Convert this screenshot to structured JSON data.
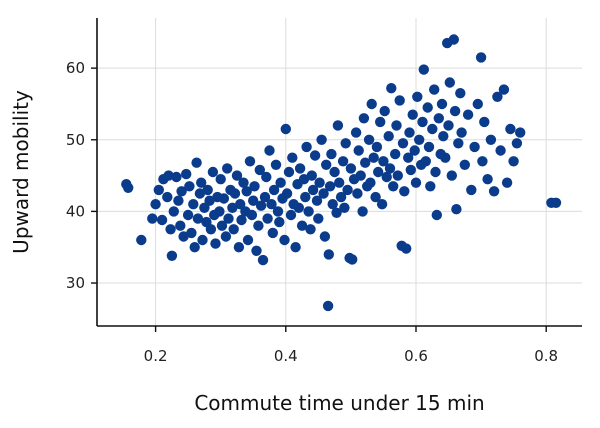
{
  "chart_data": {
    "type": "scatter",
    "title": "",
    "xlabel": "Commute time under 15 min",
    "ylabel": "Upward mobility",
    "xlim": [
      0.11,
      0.855
    ],
    "ylim": [
      24,
      67
    ],
    "xticks": [
      0.2,
      0.4,
      0.6,
      0.8
    ],
    "xtick_labels": [
      "0.2",
      "0.4",
      "0.6",
      "0.8"
    ],
    "yticks": [
      30,
      40,
      50,
      60
    ],
    "ytick_labels": [
      "30",
      "40",
      "50",
      "60"
    ],
    "grid": true,
    "point_color": "#0b3c8c",
    "series": [
      {
        "points": [
          [
            0.155,
            43.8
          ],
          [
            0.158,
            43.3
          ],
          [
            0.178,
            36.0
          ],
          [
            0.195,
            39.0
          ],
          [
            0.2,
            41.0
          ],
          [
            0.205,
            43.0
          ],
          [
            0.21,
            38.8
          ],
          [
            0.212,
            44.5
          ],
          [
            0.218,
            42.0
          ],
          [
            0.22,
            45.0
          ],
          [
            0.223,
            37.5
          ],
          [
            0.225,
            33.8
          ],
          [
            0.228,
            40.0
          ],
          [
            0.232,
            44.8
          ],
          [
            0.235,
            41.5
          ],
          [
            0.238,
            38.0
          ],
          [
            0.24,
            42.8
          ],
          [
            0.243,
            36.5
          ],
          [
            0.247,
            45.2
          ],
          [
            0.25,
            39.5
          ],
          [
            0.252,
            43.5
          ],
          [
            0.255,
            37.0
          ],
          [
            0.258,
            41.0
          ],
          [
            0.26,
            35.0
          ],
          [
            0.263,
            46.8
          ],
          [
            0.265,
            39.0
          ],
          [
            0.268,
            42.5
          ],
          [
            0.27,
            44.0
          ],
          [
            0.272,
            36.0
          ],
          [
            0.275,
            40.5
          ],
          [
            0.278,
            38.5
          ],
          [
            0.28,
            43.0
          ],
          [
            0.283,
            41.5
          ],
          [
            0.285,
            37.5
          ],
          [
            0.288,
            45.5
          ],
          [
            0.29,
            39.5
          ],
          [
            0.292,
            35.5
          ],
          [
            0.295,
            42.0
          ],
          [
            0.298,
            40.0
          ],
          [
            0.3,
            44.5
          ],
          [
            0.302,
            38.0
          ],
          [
            0.305,
            41.8
          ],
          [
            0.308,
            36.5
          ],
          [
            0.31,
            46.0
          ],
          [
            0.312,
            39.0
          ],
          [
            0.315,
            43.0
          ],
          [
            0.318,
            40.5
          ],
          [
            0.32,
            37.5
          ],
          [
            0.322,
            42.5
          ],
          [
            0.325,
            45.0
          ],
          [
            0.328,
            35.0
          ],
          [
            0.33,
            41.0
          ],
          [
            0.332,
            38.8
          ],
          [
            0.335,
            44.0
          ],
          [
            0.338,
            40.0
          ],
          [
            0.34,
            42.8
          ],
          [
            0.342,
            36.0
          ],
          [
            0.345,
            47.0
          ],
          [
            0.348,
            39.5
          ],
          [
            0.35,
            41.5
          ],
          [
            0.352,
            43.5
          ],
          [
            0.355,
            34.5
          ],
          [
            0.358,
            38.0
          ],
          [
            0.36,
            45.8
          ],
          [
            0.362,
            40.8
          ],
          [
            0.365,
            33.2
          ],
          [
            0.368,
            42.0
          ],
          [
            0.37,
            44.8
          ],
          [
            0.372,
            39.0
          ],
          [
            0.375,
            48.5
          ],
          [
            0.378,
            41.0
          ],
          [
            0.38,
            37.0
          ],
          [
            0.382,
            43.0
          ],
          [
            0.385,
            46.5
          ],
          [
            0.388,
            40.0
          ],
          [
            0.39,
            38.5
          ],
          [
            0.392,
            44.0
          ],
          [
            0.395,
            41.8
          ],
          [
            0.398,
            36.0
          ],
          [
            0.4,
            51.5
          ],
          [
            0.402,
            42.5
          ],
          [
            0.405,
            45.5
          ],
          [
            0.408,
            39.5
          ],
          [
            0.41,
            47.5
          ],
          [
            0.412,
            41.0
          ],
          [
            0.415,
            35.0
          ],
          [
            0.418,
            43.8
          ],
          [
            0.42,
            40.5
          ],
          [
            0.422,
            46.0
          ],
          [
            0.425,
            38.0
          ],
          [
            0.428,
            44.5
          ],
          [
            0.43,
            42.0
          ],
          [
            0.432,
            49.0
          ],
          [
            0.435,
            40.0
          ],
          [
            0.438,
            37.5
          ],
          [
            0.44,
            45.0
          ],
          [
            0.442,
            43.0
          ],
          [
            0.445,
            47.8
          ],
          [
            0.448,
            41.5
          ],
          [
            0.45,
            39.0
          ],
          [
            0.452,
            44.0
          ],
          [
            0.455,
            50.0
          ],
          [
            0.458,
            42.5
          ],
          [
            0.46,
            36.5
          ],
          [
            0.462,
            46.5
          ],
          [
            0.465,
            26.8
          ],
          [
            0.466,
            34.0
          ],
          [
            0.468,
            43.5
          ],
          [
            0.47,
            48.0
          ],
          [
            0.472,
            41.0
          ],
          [
            0.475,
            45.5
          ],
          [
            0.478,
            39.8
          ],
          [
            0.48,
            52.0
          ],
          [
            0.482,
            44.0
          ],
          [
            0.485,
            42.0
          ],
          [
            0.488,
            47.0
          ],
          [
            0.49,
            40.5
          ],
          [
            0.492,
            49.5
          ],
          [
            0.495,
            43.0
          ],
          [
            0.498,
            33.5
          ],
          [
            0.5,
            46.0
          ],
          [
            0.502,
            33.3
          ],
          [
            0.505,
            44.5
          ],
          [
            0.508,
            51.0
          ],
          [
            0.51,
            42.5
          ],
          [
            0.512,
            48.5
          ],
          [
            0.515,
            45.0
          ],
          [
            0.518,
            40.0
          ],
          [
            0.52,
            53.0
          ],
          [
            0.522,
            46.8
          ],
          [
            0.525,
            43.5
          ],
          [
            0.528,
            50.0
          ],
          [
            0.53,
            44.0
          ],
          [
            0.532,
            55.0
          ],
          [
            0.535,
            47.5
          ],
          [
            0.538,
            42.0
          ],
          [
            0.54,
            49.0
          ],
          [
            0.542,
            45.5
          ],
          [
            0.545,
            52.5
          ],
          [
            0.548,
            41.0
          ],
          [
            0.55,
            47.0
          ],
          [
            0.552,
            54.0
          ],
          [
            0.555,
            44.8
          ],
          [
            0.558,
            50.5
          ],
          [
            0.56,
            46.0
          ],
          [
            0.562,
            57.2
          ],
          [
            0.565,
            43.5
          ],
          [
            0.568,
            48.0
          ],
          [
            0.57,
            52.0
          ],
          [
            0.572,
            45.0
          ],
          [
            0.575,
            55.5
          ],
          [
            0.578,
            35.2
          ],
          [
            0.58,
            49.5
          ],
          [
            0.582,
            42.8
          ],
          [
            0.585,
            34.8
          ],
          [
            0.588,
            47.5
          ],
          [
            0.59,
            51.0
          ],
          [
            0.592,
            45.8
          ],
          [
            0.595,
            53.5
          ],
          [
            0.598,
            48.5
          ],
          [
            0.6,
            44.0
          ],
          [
            0.602,
            56.0
          ],
          [
            0.605,
            50.0
          ],
          [
            0.608,
            46.5
          ],
          [
            0.61,
            52.5
          ],
          [
            0.612,
            59.8
          ],
          [
            0.615,
            47.0
          ],
          [
            0.618,
            54.5
          ],
          [
            0.62,
            49.0
          ],
          [
            0.622,
            43.5
          ],
          [
            0.625,
            51.5
          ],
          [
            0.628,
            57.0
          ],
          [
            0.63,
            45.5
          ],
          [
            0.632,
            39.5
          ],
          [
            0.635,
            53.0
          ],
          [
            0.638,
            48.0
          ],
          [
            0.64,
            55.0
          ],
          [
            0.642,
            50.5
          ],
          [
            0.645,
            47.5
          ],
          [
            0.648,
            63.5
          ],
          [
            0.65,
            52.0
          ],
          [
            0.652,
            58.0
          ],
          [
            0.655,
            45.0
          ],
          [
            0.658,
            64.0
          ],
          [
            0.66,
            54.0
          ],
          [
            0.662,
            40.3
          ],
          [
            0.665,
            49.5
          ],
          [
            0.668,
            56.5
          ],
          [
            0.67,
            51.0
          ],
          [
            0.675,
            46.5
          ],
          [
            0.68,
            53.5
          ],
          [
            0.685,
            43.0
          ],
          [
            0.69,
            49.0
          ],
          [
            0.695,
            55.0
          ],
          [
            0.7,
            61.5
          ],
          [
            0.702,
            47.0
          ],
          [
            0.705,
            52.5
          ],
          [
            0.71,
            44.5
          ],
          [
            0.715,
            50.0
          ],
          [
            0.72,
            42.8
          ],
          [
            0.725,
            56.0
          ],
          [
            0.73,
            48.5
          ],
          [
            0.735,
            57.0
          ],
          [
            0.74,
            44.0
          ],
          [
            0.745,
            51.5
          ],
          [
            0.75,
            47.0
          ],
          [
            0.755,
            49.5
          ],
          [
            0.76,
            51.0
          ],
          [
            0.808,
            41.2
          ],
          [
            0.815,
            41.2
          ]
        ]
      }
    ]
  }
}
